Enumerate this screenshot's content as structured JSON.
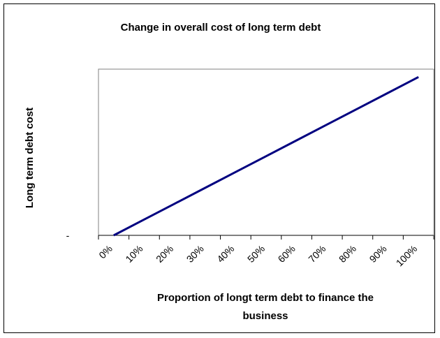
{
  "chart_data": {
    "type": "line",
    "title": "Change in overall cost of long term debt",
    "xlabel_lines": [
      "Proportion of longt term debt to finance the",
      "business"
    ],
    "ylabel": "Long term debt cost",
    "y_tick_labels": [
      "-"
    ],
    "categories": [
      "0%",
      "10%",
      "20%",
      "30%",
      "40%",
      "50%",
      "60%",
      "70%",
      "80%",
      "90%",
      "100%"
    ],
    "series": [
      {
        "values": [
          0,
          10,
          20,
          30,
          40,
          50,
          60,
          70,
          80,
          90,
          100
        ]
      }
    ],
    "ylim": [
      0,
      105
    ],
    "grid": false,
    "legend": "none",
    "line_color": "#000080"
  }
}
